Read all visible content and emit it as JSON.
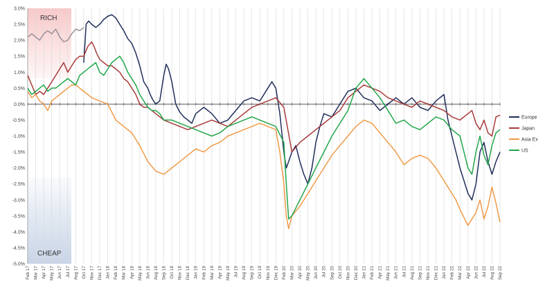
{
  "chart_data": {
    "type": "line",
    "title": "",
    "xlabel": "",
    "ylabel": "",
    "ylim": [
      -5.0,
      3.0
    ],
    "yticks": [
      "3.0%",
      "2.5%",
      "2.0%",
      "1.5%",
      "1.0%",
      "0.5%",
      "0.0%",
      "-0.5%",
      "-1.0%",
      "-1.5%",
      "-2.0%",
      "-2.5%",
      "-3.0%",
      "-3.5%",
      "-4.0%",
      "-4.5%",
      "-5.0%"
    ],
    "xticks": [
      "Feb 17",
      "Mar 17",
      "Apr 17",
      "May 17",
      "Jun 17",
      "Jul 17",
      "Aug 17",
      "Oct 17",
      "Nov 17",
      "Dec 17",
      "Jan 18",
      "Feb 18",
      "Mar 18",
      "Apr 18",
      "May 18",
      "Jun 18",
      "Aug 18",
      "Sep 18",
      "Oct 18",
      "Nov 18",
      "Dec 18",
      "Jan 19",
      "Feb 19",
      "Mar 19",
      "Apr 19",
      "May 19",
      "Jul 19",
      "Aug 19",
      "Sep 19",
      "Oct 19",
      "Nov 19",
      "Dec 19",
      "Feb 20",
      "Mar 20",
      "Apr 20",
      "May 20",
      "Jun 20",
      "Jul 20",
      "Sep 20",
      "Oct 20",
      "Nov 20",
      "Dec 20",
      "Jan 21",
      "Feb 21",
      "Apr 21",
      "May 21",
      "Jun 21",
      "Jul 21",
      "Aug 21",
      "Sep 21",
      "Nov 21",
      "Dec 21",
      "Jan 22",
      "Feb 22",
      "Mar 22",
      "Apr 22",
      "Jun 22",
      "Jul 22",
      "Aug 22",
      "Sep 22"
    ],
    "grid": "vertical",
    "legend_position": "right",
    "bands": {
      "rich": {
        "label": "RICH",
        "color": "#f8c6c6"
      },
      "cheap": {
        "label": "CHEAP",
        "color": "#c5d2e6"
      }
    },
    "series": [
      {
        "name": "Europe",
        "color": "#1f2d5a",
        "x": [
          7.0,
          7.3,
          7.6,
          8.0,
          8.5,
          9.0,
          9.5,
          10.0,
          10.5,
          11.0,
          11.5,
          12.0,
          12.5,
          13.0,
          13.5,
          14.0,
          14.5,
          15.0,
          15.3,
          15.6,
          16.0,
          16.5,
          17.0,
          17.3,
          17.6,
          18.0,
          18.5,
          19.0,
          19.5,
          20.0,
          20.5,
          21.0,
          22.0,
          23.0,
          24.0,
          25.0,
          26.0,
          27.0,
          28.0,
          29.0,
          30.0,
          30.5,
          31.0,
          31.5,
          32.0,
          32.3,
          32.6,
          33.0,
          33.5,
          34.0,
          34.5,
          35.0,
          35.5,
          36.0,
          36.5,
          37.0,
          38.0,
          39.0,
          40.0,
          41.0,
          42.0,
          43.0,
          44.0,
          45.0,
          46.0,
          47.0,
          48.0,
          49.0,
          50.0,
          51.0,
          52.0,
          52.5,
          53.0,
          54.0,
          55.0,
          55.5,
          56.0,
          56.5,
          57.0,
          57.5,
          58.0,
          58.5,
          59.0
        ],
        "values": [
          1.3,
          2.5,
          2.6,
          2.5,
          2.4,
          2.5,
          2.65,
          2.75,
          2.8,
          2.7,
          2.5,
          2.3,
          2.05,
          1.9,
          1.6,
          1.2,
          0.7,
          0.5,
          0.3,
          0.15,
          0.0,
          0.1,
          0.9,
          1.25,
          1.1,
          0.7,
          0.0,
          -0.25,
          -0.4,
          -0.5,
          -0.6,
          -0.3,
          -0.1,
          -0.3,
          -0.6,
          -0.5,
          -0.2,
          0.1,
          0.2,
          0.1,
          0.5,
          0.7,
          0.5,
          -0.3,
          -1.5,
          -2.0,
          -1.8,
          -1.5,
          -1.3,
          -1.8,
          -2.2,
          -2.5,
          -2.0,
          -1.2,
          -0.7,
          -0.3,
          -0.4,
          0.0,
          0.4,
          0.5,
          0.2,
          0.1,
          -0.2,
          0.0,
          0.2,
          0.0,
          0.2,
          -0.1,
          -0.2,
          0.1,
          0.3,
          -0.5,
          -1.0,
          -2.0,
          -2.8,
          -3.0,
          -2.5,
          -1.5,
          -1.2,
          -1.8,
          -2.2,
          -1.8,
          -1.5
        ]
      },
      {
        "name": "Japan",
        "color": "#a83a3a",
        "x": [
          0.0,
          0.5,
          1.0,
          1.5,
          2.0,
          2.5,
          3.0,
          3.5,
          4.0,
          4.5,
          5.0,
          5.5,
          6.0,
          6.5,
          7.0,
          7.5,
          8.0,
          8.3,
          8.6,
          9.0,
          9.5,
          10.0,
          10.5,
          11.0,
          11.5,
          12.0,
          12.5,
          13.0,
          13.5,
          14.0,
          14.5,
          15.0,
          16.0,
          17.0,
          18.0,
          19.0,
          20.0,
          21.0,
          22.0,
          23.0,
          24.0,
          25.0,
          26.0,
          27.0,
          28.0,
          29.0,
          30.0,
          31.0,
          32.0,
          32.5,
          33.0,
          34.0,
          35.0,
          36.0,
          37.0,
          38.0,
          39.0,
          40.0,
          41.0,
          42.0,
          43.0,
          44.0,
          45.0,
          46.0,
          47.0,
          48.0,
          49.0,
          50.0,
          51.0,
          52.0,
          53.0,
          54.0,
          55.0,
          55.5,
          56.0,
          56.5,
          57.0,
          57.5,
          58.0,
          58.5,
          59.0
        ],
        "values": [
          0.9,
          0.6,
          0.3,
          0.4,
          0.3,
          0.5,
          0.7,
          0.9,
          1.1,
          1.3,
          1.0,
          1.2,
          1.4,
          1.5,
          1.5,
          1.8,
          1.95,
          1.8,
          1.6,
          1.4,
          1.3,
          1.2,
          1.2,
          1.1,
          1.0,
          0.8,
          0.7,
          0.5,
          0.3,
          0.0,
          -0.1,
          -0.1,
          -0.3,
          -0.5,
          -0.6,
          -0.7,
          -0.8,
          -0.7,
          -0.6,
          -0.5,
          -0.6,
          -0.7,
          -0.5,
          -0.3,
          -0.1,
          0.0,
          0.1,
          0.2,
          -0.1,
          -0.8,
          -1.5,
          -1.2,
          -1.0,
          -0.8,
          -0.6,
          -0.4,
          -0.2,
          0.2,
          0.4,
          0.6,
          0.5,
          0.4,
          0.2,
          0.1,
          0.0,
          -0.1,
          0.1,
          0.0,
          -0.1,
          -0.2,
          -0.4,
          -0.5,
          -0.3,
          -0.2,
          -0.6,
          -0.8,
          -0.5,
          -0.9,
          -1.0,
          -0.4,
          -0.35
        ]
      },
      {
        "name": "Asia Ex",
        "color": "#ef9a48",
        "x": [
          0.0,
          0.5,
          1.0,
          1.5,
          2.0,
          2.5,
          3.0,
          3.5,
          4.0,
          4.5,
          5.0,
          5.5,
          6.0,
          6.5,
          7.0,
          7.5,
          8.0,
          9.0,
          10.0,
          11.0,
          12.0,
          13.0,
          14.0,
          15.0,
          16.0,
          17.0,
          18.0,
          19.0,
          20.0,
          21.0,
          22.0,
          23.0,
          24.0,
          25.0,
          26.0,
          27.0,
          28.0,
          29.0,
          30.0,
          31.0,
          31.5,
          32.0,
          32.3,
          32.6,
          33.0,
          34.0,
          35.0,
          36.0,
          37.0,
          38.0,
          39.0,
          40.0,
          41.0,
          42.0,
          43.0,
          44.0,
          45.0,
          46.0,
          47.0,
          48.0,
          49.0,
          50.0,
          51.0,
          52.0,
          53.0,
          53.5,
          54.0,
          55.0,
          56.0,
          56.5,
          57.0,
          57.5,
          58.0,
          58.5,
          59.0
        ],
        "values": [
          0.4,
          0.2,
          0.3,
          0.1,
          0.0,
          -0.2,
          0.1,
          0.2,
          0.3,
          0.4,
          0.5,
          0.6,
          0.6,
          0.5,
          0.4,
          0.3,
          0.2,
          0.1,
          0.0,
          -0.5,
          -0.7,
          -0.9,
          -1.3,
          -1.8,
          -2.1,
          -2.2,
          -2.0,
          -1.8,
          -1.6,
          -1.4,
          -1.5,
          -1.3,
          -1.2,
          -1.0,
          -0.9,
          -0.8,
          -0.7,
          -0.6,
          -0.7,
          -0.8,
          -1.5,
          -2.5,
          -3.5,
          -3.9,
          -3.5,
          -3.2,
          -2.8,
          -2.4,
          -2.0,
          -1.6,
          -1.3,
          -1.0,
          -0.7,
          -0.5,
          -0.6,
          -0.9,
          -1.2,
          -1.5,
          -1.9,
          -1.7,
          -1.6,
          -1.7,
          -2.0,
          -2.4,
          -2.8,
          -3.0,
          -3.3,
          -3.8,
          -3.4,
          -3.0,
          -3.6,
          -3.2,
          -2.6,
          -3.1,
          -3.7
        ]
      },
      {
        "name": "US",
        "color": "#21a64a",
        "x": [
          0.0,
          0.5,
          1.0,
          1.5,
          2.0,
          2.5,
          3.0,
          3.5,
          4.0,
          4.5,
          5.0,
          5.5,
          6.0,
          6.5,
          7.0,
          7.5,
          8.0,
          8.5,
          9.0,
          9.5,
          10.0,
          10.5,
          11.0,
          11.5,
          12.0,
          12.5,
          13.0,
          13.5,
          14.0,
          14.5,
          15.0,
          15.5,
          16.0,
          16.5,
          17.0,
          18.0,
          19.0,
          20.0,
          21.0,
          22.0,
          23.0,
          24.0,
          25.0,
          26.0,
          27.0,
          28.0,
          29.0,
          30.0,
          31.0,
          32.0,
          32.3,
          32.6,
          33.0,
          34.0,
          35.0,
          36.0,
          37.0,
          38.0,
          39.0,
          40.0,
          41.0,
          42.0,
          43.0,
          44.0,
          45.0,
          46.0,
          47.0,
          48.0,
          49.0,
          50.0,
          51.0,
          52.0,
          53.0,
          54.0,
          54.5,
          55.0,
          55.5,
          56.0,
          56.5,
          57.0,
          57.5,
          58.0,
          58.5,
          59.0
        ],
        "values": [
          0.5,
          0.3,
          0.4,
          0.5,
          0.6,
          0.4,
          0.5,
          0.5,
          0.6,
          0.7,
          0.8,
          0.7,
          0.6,
          0.9,
          1.0,
          1.1,
          1.2,
          1.3,
          1.0,
          0.9,
          1.1,
          1.3,
          1.4,
          1.5,
          1.3,
          1.0,
          0.8,
          0.6,
          0.3,
          0.1,
          -0.1,
          -0.2,
          -0.2,
          -0.3,
          -0.5,
          -0.5,
          -0.6,
          -0.7,
          -0.8,
          -0.9,
          -1.0,
          -0.9,
          -0.7,
          -0.6,
          -0.5,
          -0.4,
          -0.5,
          -0.6,
          -0.7,
          -1.2,
          -2.5,
          -3.6,
          -3.5,
          -3.0,
          -2.5,
          -2.0,
          -1.5,
          -1.0,
          -0.6,
          -0.2,
          0.5,
          0.8,
          0.5,
          0.2,
          -0.2,
          -0.6,
          -0.5,
          -0.7,
          -0.8,
          -0.6,
          -0.4,
          -0.5,
          -0.8,
          -1.0,
          -1.5,
          -2.0,
          -2.2,
          -1.5,
          -1.0,
          -1.6,
          -1.9,
          -1.3,
          -0.9,
          -0.8
        ]
      },
      {
        "name": "",
        "color": "#9a8f99",
        "x": [
          0.0,
          0.5,
          1.0,
          1.5,
          2.0,
          2.5,
          3.0,
          3.5,
          4.0,
          4.5,
          5.0,
          5.5,
          6.0,
          6.5,
          7.0
        ],
        "values": [
          2.1,
          2.2,
          2.1,
          2.0,
          2.2,
          2.3,
          2.2,
          2.35,
          2.1,
          1.95,
          2.0,
          2.2,
          2.35,
          2.3,
          2.4
        ]
      }
    ]
  }
}
